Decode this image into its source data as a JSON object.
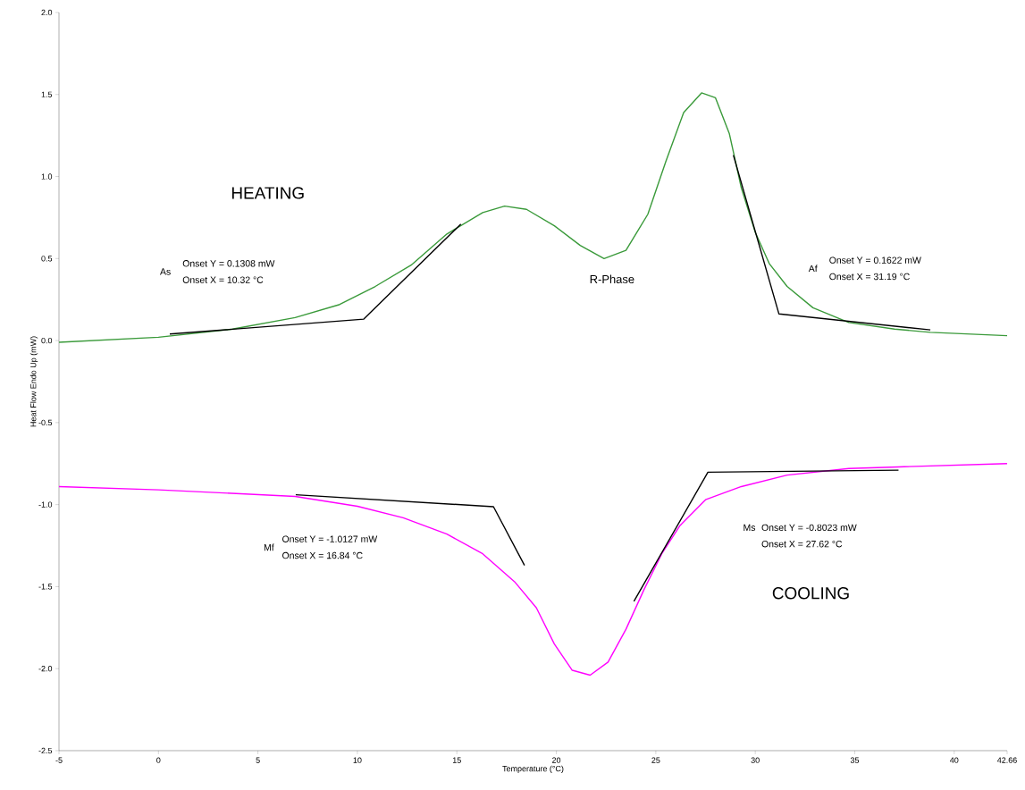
{
  "chart_data": {
    "type": "line",
    "xlabel": "Temperature (°C)",
    "ylabel": "Heat Flow Endo Up (mW)",
    "xlim": [
      -5,
      42.66
    ],
    "ylim": [
      -2.5,
      2.0
    ],
    "xticks": [
      -5,
      0,
      5,
      10,
      15,
      20,
      25,
      30,
      35,
      40,
      42.66
    ],
    "yticks": [
      {
        "value": -2.5,
        "label": "-2.5"
      },
      {
        "value": -2,
        "label": "-2.0"
      },
      {
        "value": -1.5,
        "label": "-1.5"
      },
      {
        "value": -1,
        "label": "-1.0"
      },
      {
        "value": -0.5,
        "label": "-0.5"
      },
      {
        "value": 0,
        "label": "0.0"
      },
      {
        "value": 0.5,
        "label": "0.5"
      },
      {
        "value": 1,
        "label": "1.0"
      },
      {
        "value": 1.5,
        "label": "1.5"
      },
      {
        "value": 2,
        "label": "2.0"
      }
    ],
    "series": [
      {
        "color": "#3a9a3a",
        "x": [
          -5,
          0,
          3.72,
          6.87,
          9.11,
          10.9,
          12.7,
          14.5,
          16.3,
          17.4,
          18.5,
          19.9,
          21.2,
          22.4,
          23.5,
          24.6,
          25.5,
          26.4,
          27.3,
          28.0,
          28.7,
          29.3,
          30.0,
          30.7,
          31.6,
          32.9,
          34.7,
          37.0,
          38.8,
          42.66
        ],
        "values": [
          -0.01,
          0.02,
          0.07,
          0.14,
          0.22,
          0.33,
          0.46,
          0.65,
          0.78,
          0.82,
          0.8,
          0.7,
          0.58,
          0.5,
          0.55,
          0.77,
          1.09,
          1.39,
          1.51,
          1.48,
          1.26,
          0.93,
          0.66,
          0.47,
          0.33,
          0.2,
          0.11,
          0.07,
          0.05,
          0.03
        ]
      },
      {
        "color": "#ff00ff",
        "x": [
          -5,
          0,
          6.87,
          10.0,
          12.3,
          14.5,
          16.3,
          17.9,
          19.0,
          19.9,
          20.8,
          21.7,
          22.6,
          23.5,
          24.4,
          25.3,
          26.2,
          27.5,
          29.3,
          31.6,
          34.7,
          37.2,
          42.66
        ],
        "values": [
          -0.89,
          -0.91,
          -0.95,
          -1.01,
          -1.08,
          -1.18,
          -1.3,
          -1.47,
          -1.63,
          -1.85,
          -2.01,
          -2.04,
          -1.96,
          -1.76,
          -1.52,
          -1.3,
          -1.13,
          -0.97,
          -0.89,
          -0.82,
          -0.78,
          -0.77,
          -0.75
        ]
      },
      {
        "color": "#000000",
        "x": [
          0.57,
          10.32,
          15.2
        ],
        "values": [
          0.04,
          0.1308,
          0.71
        ]
      },
      {
        "color": "#000000",
        "x": [
          28.9,
          31.19,
          38.8
        ],
        "values": [
          1.13,
          0.1622,
          0.065
        ]
      },
      {
        "color": "#000000",
        "x": [
          6.9,
          16.84,
          18.4
        ],
        "values": [
          -0.94,
          -1.0127,
          -1.37
        ]
      },
      {
        "color": "#000000",
        "x": [
          23.9,
          27.62,
          37.2
        ],
        "values": [
          -1.59,
          -0.8023,
          -0.79
        ]
      }
    ],
    "annotations": [
      "HEATING",
      "R-Phase",
      "COOLING",
      "As",
      "Onset Y = 0.1308 mW",
      "Onset X = 10.32 °C",
      "Af",
      "Onset Y = 0.1622 mW",
      "Onset X = 31.19 °C",
      "Mf",
      "Onset Y = -1.0127 mW",
      "Onset X = 16.84 °C",
      "Ms",
      "Onset Y = -0.8023 mW",
      "Onset X = 27.62 °C"
    ]
  }
}
